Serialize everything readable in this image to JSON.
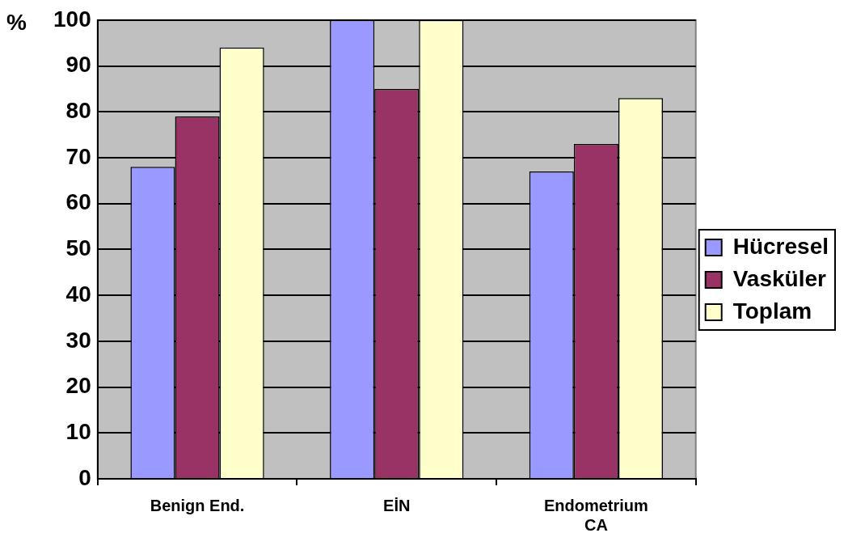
{
  "chart_data": {
    "type": "bar",
    "ylabel": "%",
    "categories": [
      "Benign End.",
      "EİN",
      "Endometrium CA"
    ],
    "series": [
      {
        "name": "Hücresel",
        "color": "#9999ff",
        "values": [
          68,
          100,
          67
        ]
      },
      {
        "name": "Vasküler",
        "color": "#993366",
        "values": [
          79,
          85,
          73
        ]
      },
      {
        "name": "Toplam",
        "color": "#ffffcc",
        "values": [
          94,
          100,
          83
        ]
      }
    ],
    "ylim": [
      0,
      100
    ],
    "yticks": [
      0,
      10,
      20,
      30,
      40,
      50,
      60,
      70,
      80,
      90,
      100
    ],
    "grid": "y",
    "legend": "right"
  }
}
